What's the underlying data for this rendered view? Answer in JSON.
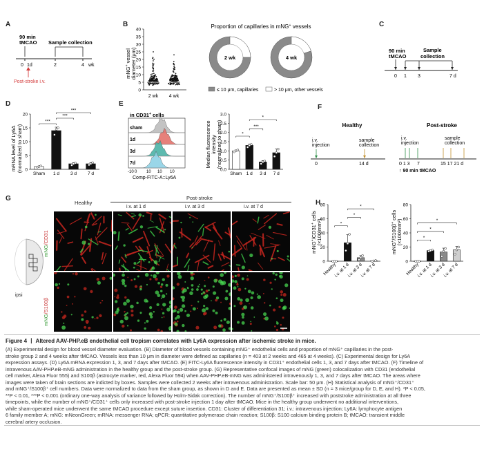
{
  "panelA": {
    "label": "A",
    "event1": "90 min",
    "event1b": "tMCAO",
    "event2": "Sample collection",
    "ticks": [
      "0",
      "1d",
      "2",
      "4"
    ],
    "unit": "wk",
    "iv_label": "Post-stroke i.v."
  },
  "panelB": {
    "label": "B",
    "ylabel1": "mNG",
    "ylabel_sup": "+",
    "ylabel2": " vessel",
    "ylabel3": "diameter (μm)",
    "yticks": [
      "0",
      "5",
      "10",
      "15",
      "20",
      "25",
      "30",
      "35",
      "40"
    ],
    "xticks": [
      "2 wk",
      "4 wk"
    ],
    "pie_title": "Proportion of capillaries in mNG",
    "pie_title_sup": "+",
    "pie_title_end": " vessels",
    "pie_labels": [
      "2 wk",
      "4 wk"
    ],
    "legend1": "≤ 10 μm, capillaries",
    "legend2": "> 10 μm, other vessels"
  },
  "panelC": {
    "label": "C",
    "event1": "90 min",
    "event1b": "tMCAO",
    "event2": "Sample",
    "event2b": "collection",
    "ticks": [
      "0",
      "1",
      "3",
      "7 d"
    ]
  },
  "panelD": {
    "label": "D",
    "ylabel1": "mRNA level of Ly6A",
    "ylabel2": "(normalized to sham)",
    "yticks": [
      "0",
      "5",
      "10",
      "15",
      "20"
    ],
    "xticks": [
      "Sham",
      "1 d",
      "3 d",
      "7 d"
    ],
    "sig": [
      "***",
      "***",
      "***"
    ]
  },
  "panelE": {
    "label": "E",
    "hist_title": "in CD31",
    "hist_title_sup": "+",
    "hist_title_end": " cells",
    "rows": [
      "sham",
      "1d",
      "3d",
      "7d"
    ],
    "xticks": [
      "-10",
      "0",
      "10",
      "10",
      "10"
    ],
    "xlabel": "Comp-FITC-A::Ly6A",
    "ylabel1": "Median fluorescence",
    "ylabel2": "intensity",
    "ylabel3": "(normalized to sham)",
    "yticks": [
      "0.0",
      "0.5",
      "1.0",
      "1.5",
      "2.0",
      "2.5",
      "3.0"
    ],
    "bar_xticks": [
      "Sham",
      "1 d",
      "3 d",
      "7 d"
    ],
    "sig": [
      "*",
      "***",
      "*"
    ]
  },
  "panelF": {
    "label": "F",
    "title1": "Healthy",
    "title2": "Post-stroke",
    "iv": "i.v.",
    "injection": "injection",
    "sample": "sample",
    "collection": "collection",
    "ticks_h": [
      "0",
      "14 d"
    ],
    "ticks_p": [
      "0 1 3",
      "7",
      "15 17 21 d"
    ],
    "tmcao": "↑ 90 min tMCAO"
  },
  "panelG": {
    "label": "G",
    "header_healthy": "Healthy",
    "header_post": "Post-stroke",
    "cols": [
      "i.v. at 1 d",
      "i.v. at 3 d",
      "i.v. at 7 d"
    ],
    "row1_a": "mNG",
    "row1_b": "/CD31",
    "row2_a": "mNG",
    "row2_b": "/S100β",
    "ipsi": "ipsi"
  },
  "panelH": {
    "label": "H",
    "ylabel1a": "mNG",
    "ylabel1b": "/CD31",
    "ylabel1c": " cells",
    "ylabel1d": "(×100/mm²)",
    "ylabel2a": "mNG",
    "ylabel2b": "/S100β",
    "ylabel2c": " cells",
    "ylabel2d": "(×100/mm²)",
    "yticks": [
      "0",
      "20",
      "40",
      "60",
      "80"
    ],
    "xticks": [
      "Healthy",
      "i.v. at 1 d",
      "i.v. at 3 d",
      "i.v. at 7 d"
    ],
    "sig": [
      "*",
      "*",
      "*"
    ]
  },
  "caption": {
    "title": "Figure 4 丨 Altered AAV-PHP.eB endothelial cell tropism correlates with Ly6A expression after ischemic stroke in mice.",
    "lines": [
      "(A) Experimental design for blood vessel diameter evaluation. (B) Diameter of blood vessels containing mNG⁺ endothelial cells and proportion of mNG⁺ capillaries in the post-",
      "stroke group 2 and 4 weeks after tMCAO. Vessels less than 10 μm in diameter were defined as capillaries (n = 403 at 2 weeks and 465 at 4 weeks). (C) Experimental design for Ly6A",
      "expression assays. (D) Ly6A mRNA expression 1, 3, and 7 days after tMCAO. (E) FITC-Ly6A fluorescence intensity in CD31⁺ endothelial cells 1, 3, and 7 days after tMCAO. (F) Timeline of",
      "intravenous AAV-PHP.eB-mNG administration in the healthy group and the post-stroke group. (G) Representative confocal images of mNG (green) colocalization with CD31 (endothelial",
      "cell marker, Alexa Fluor 555) and S100β (astrocyte marker, red, Alexa Fluor 594) when AAV-PHP.eB-mNG was administered intravenously 1, 3, and 7 days after tMCAO. The areas where",
      "images were taken of brain sections are indicted by boxes. Samples were collected 2 weeks after intravenous administration. Scale bar: 50 μm. (H) Statistical analysis of mNG⁺/CD31⁺",
      "and mNG⁺/S100β⁺ cell numbers. Data were normalized to data from the sham group, as shown in D and E. Data are presented as mean ± SD (n = 3 mice/group for D, E, and H). *P < 0.05,",
      "**P < 0.01, ***P < 0.001 (ordinary one-way analysis of variance followed by Holm-Sidak correction). The number of mNG⁺/S100β⁺ increased with poststroke administration at all three",
      "timepoints, while the number of mNG⁺/CD31⁺ cells only increased with post-stroke injection 1 day after tMCAO. Mice in the healthy group underwent no additional interventions,",
      "while sham-operated mice underwent the same tMCAO procedure except suture insertion. CD31: Cluster of differentiation 31; i.v.: intravenous injection; Ly6A: lymphocyte antigen",
      "6 family member A; mNG: mNeonGreen; mRNA: messenger RNA; qPCR: quantitative polymerase chain reaction; S100β: S100 calcium binding protein B; tMCAO: transient middle",
      "cerebral artery occlusion."
    ]
  },
  "chart_data": [
    {
      "id": "B-scatter",
      "type": "scatter",
      "categories": [
        "2 wk",
        "4 wk"
      ],
      "ylabel": "mNG+ vessel diameter (μm)",
      "ylim": [
        0,
        40
      ],
      "note_n": [
        403,
        465
      ]
    },
    {
      "id": "B-pie",
      "type": "pie",
      "series": [
        {
          "name": "2 wk",
          "values": [
            75,
            25
          ]
        },
        {
          "name": "4 wk",
          "values": [
            80,
            20
          ]
        }
      ],
      "categories": [
        "≤ 10 μm, capillaries",
        "> 10 μm, other vessels"
      ]
    },
    {
      "id": "D",
      "type": "bar",
      "categories": [
        "Sham",
        "1 d",
        "3 d",
        "7 d"
      ],
      "values": [
        1.0,
        14.0,
        2.0,
        2.0
      ],
      "points": [
        [
          0.8,
          1.0,
          1.2
        ],
        [
          12.5,
          14.5,
          15.0
        ],
        [
          1.5,
          2.0,
          2.3
        ],
        [
          1.6,
          2.0,
          2.4
        ]
      ],
      "ylabel": "mRNA level of Ly6A (normalized to sham)",
      "ylim": [
        0,
        20
      ]
    },
    {
      "id": "E",
      "type": "bar",
      "categories": [
        "Sham",
        "1 d",
        "3 d",
        "7 d"
      ],
      "values": [
        1.0,
        1.3,
        0.4,
        0.9
      ],
      "points": [
        [
          0.95,
          1.0,
          1.05
        ],
        [
          1.2,
          1.3,
          1.35
        ],
        [
          0.3,
          0.4,
          0.45
        ],
        [
          0.7,
          0.9,
          1.1
        ]
      ],
      "ylabel": "Median fluorescence intensity (normalized to sham)",
      "ylim": [
        0,
        3
      ]
    },
    {
      "id": "H-CD31",
      "type": "bar",
      "categories": [
        "Healthy",
        "i.v. at 1 d",
        "i.v. at 3 d",
        "i.v. at 7 d"
      ],
      "values": [
        0,
        26,
        5,
        0.5
      ],
      "points": [
        [
          0,
          0,
          0
        ],
        [
          15,
          25,
          38
        ],
        [
          2,
          5,
          8
        ],
        [
          0,
          0.5,
          1
        ]
      ],
      "ylabel": "mNG+/CD31+ cells (×100/mm²)",
      "ylim": [
        0,
        80
      ]
    },
    {
      "id": "H-S100b",
      "type": "bar",
      "categories": [
        "Healthy",
        "i.v. at 1 d",
        "i.v. at 3 d",
        "i.v. at 7 d"
      ],
      "values": [
        0,
        15,
        13,
        16
      ],
      "points": [
        [
          0,
          0,
          0
        ],
        [
          14,
          15,
          16
        ],
        [
          7,
          14,
          18
        ],
        [
          10,
          16,
          20
        ]
      ],
      "ylabel": "mNG+/S100β+ cells (×100/mm²)",
      "ylim": [
        0,
        80
      ]
    }
  ]
}
